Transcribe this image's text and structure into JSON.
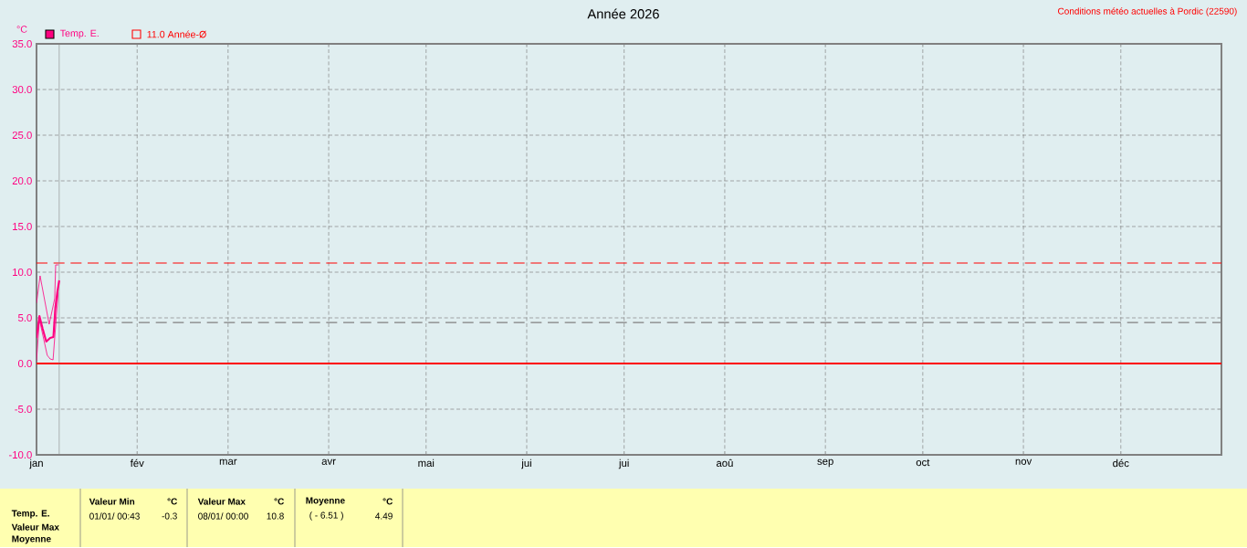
{
  "chart_data": {
    "type": "line",
    "title": "Année 2026",
    "ylabel": "°C",
    "annotations": [
      "Conditions météo actuelles à Pordic (22590)",
      "Temp. E.",
      "Valeur Max",
      "Moyenne",
      "Valeur Min",
      "°C",
      "01/01/ 00:43",
      "-0.3",
      "Valeur Max",
      "°C",
      "08/01/ 00:00",
      "10.8",
      "Moyenne",
      "°C",
      "( - 6.51 )",
      "4.49"
    ],
    "xlim": [
      "2026-01-01",
      "2027-01-01"
    ],
    "xticks": [
      {
        "value": "2026-01-01",
        "label": "jan"
      },
      {
        "value": "2026-02-01",
        "label": "fév"
      },
      {
        "value": "2026-03-01",
        "label": "mar"
      },
      {
        "value": "2026-04-01",
        "label": "avr"
      },
      {
        "value": "2026-05-01",
        "label": "mai"
      },
      {
        "value": "2026-06-01",
        "label": "jui"
      },
      {
        "value": "2026-07-01",
        "label": "jui"
      },
      {
        "value": "2026-08-01",
        "label": "aoû"
      },
      {
        "value": "2026-09-01",
        "label": "sep"
      },
      {
        "value": "2026-10-01",
        "label": "oct"
      },
      {
        "value": "2026-11-01",
        "label": "nov"
      },
      {
        "value": "2026-12-01",
        "label": "déc"
      }
    ],
    "ylim": [
      -10,
      35
    ],
    "yticks": [
      {
        "value": -10,
        "label": "-10.0"
      },
      {
        "value": -5,
        "label": "-5.0"
      },
      {
        "value": 0,
        "label": "0.0"
      },
      {
        "value": 5,
        "label": "5.0"
      },
      {
        "value": 10,
        "label": "10.0"
      },
      {
        "value": 15,
        "label": "15.0"
      },
      {
        "value": 20,
        "label": "20.0"
      },
      {
        "value": 25,
        "label": "25.0"
      },
      {
        "value": 30,
        "label": "30.0"
      },
      {
        "value": 35,
        "label": "35.0"
      }
    ],
    "grid": true,
    "legend": "top left",
    "series": [
      {
        "name": "Temp. E.",
        "color": "#ff0080",
        "x": [
          "2026-01-01T00:00",
          "2026-01-01T21:36",
          "2026-01-02T21:36",
          "2026-01-04T00:00",
          "2026-01-05T04:48",
          "2026-01-06T04:48",
          "2026-01-06T19:12",
          "2026-01-07T09:36",
          "2026-01-08T00:00"
        ],
        "values": [
          2.8,
          5.2,
          3.8,
          2.4,
          2.8,
          2.9,
          6.1,
          7.8,
          9.1
        ]
      },
      {
        "color": "#ff0080",
        "x": [
          "2026-01-01T00:00",
          "2026-01-02T02:24",
          "2026-01-04T21:36",
          "2026-01-06T14:24",
          "2026-01-06T21:36",
          "2026-01-07T19:12"
        ],
        "values": [
          6.6,
          9.6,
          4.3,
          7.1,
          10.8,
          10.8
        ]
      },
      {
        "color": "#ff0080",
        "x": [
          "2026-01-01T00:00",
          "2026-01-01T21:36",
          "2026-01-04T07:12",
          "2026-01-05T04:48",
          "2026-01-06T02:24",
          "2026-01-06T14:24",
          "2026-01-07T16:48"
        ],
        "values": [
          0.3,
          4.8,
          0.9,
          0.5,
          0.4,
          2.8,
          7.8
        ]
      }
    ],
    "ref_lines": [
      {
        "axis": "y",
        "value": 0,
        "color": "#ff0000",
        "line_style": "solid"
      },
      {
        "axis": "y",
        "value": 11,
        "label": "11.0 Année-Ø",
        "color": "#ff0000",
        "line_style": "dashed"
      },
      {
        "axis": "y",
        "value": 4.49,
        "color": "#808080",
        "line_style": "dashed"
      },
      {
        "axis": "x",
        "value": "2026-01-08",
        "color": "#808080",
        "line_style": "solid"
      }
    ]
  }
}
